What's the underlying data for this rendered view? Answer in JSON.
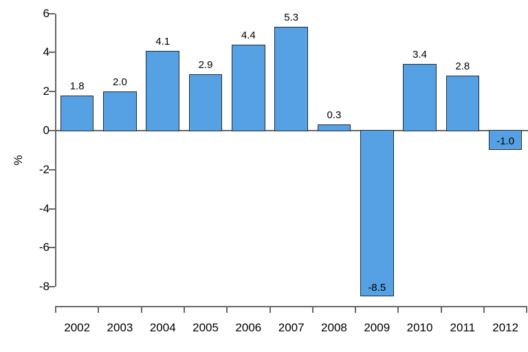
{
  "chart_data": {
    "type": "bar",
    "title": "",
    "xlabel": "",
    "ylabel": "%",
    "categories": [
      "2002",
      "2003",
      "2004",
      "2005",
      "2006",
      "2007",
      "2008",
      "2009",
      "2010",
      "2011",
      "2012"
    ],
    "values": [
      1.8,
      2.0,
      4.1,
      2.9,
      4.4,
      5.3,
      0.3,
      -8.5,
      3.4,
      2.8,
      -1.0
    ],
    "value_labels": [
      "1.8",
      "2.0",
      "4.1",
      "2.9",
      "4.4",
      "5.3",
      "0.3",
      "-8.5",
      "3.4",
      "2.8",
      "-1.0"
    ],
    "y_ticks": [
      6,
      4,
      2,
      0,
      -2,
      -4,
      -6,
      -8
    ],
    "ylim": [
      -8,
      6
    ],
    "grid": false,
    "legend": false,
    "bar_color": "#56a1e3",
    "bar_border_color": "#1e2b3a",
    "axis_color": "#666666",
    "text_color": "#000000",
    "background_color": "#ffffff"
  }
}
